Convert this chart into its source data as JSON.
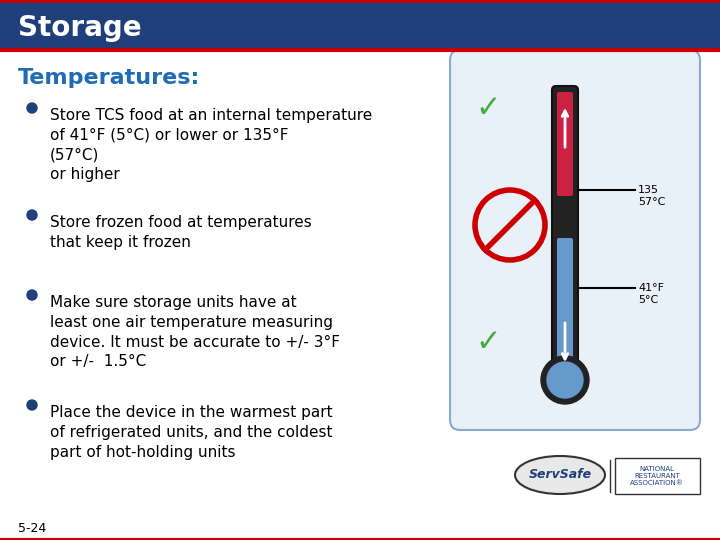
{
  "title": "Storage",
  "subtitle": "Temperatures:",
  "header_bg": "#1F3F7A",
  "header_text_color": "#FFFFFF",
  "subtitle_color": "#1F6CB5",
  "accent_red": "#CC0000",
  "bullet_color": "#1F3F7A",
  "body_bg": "#FFFFFF",
  "slide_border_top": "#CC0000",
  "slide_border_bottom": "#CC0000",
  "bullets": [
    "Store TCS food at an internal temperature\nof 41°F (5°C) or lower or 135°F\n(57°C)\nor higher",
    "Store frozen food at temperatures\nthat keep it frozen",
    "Make sure storage units have at\nleast one air temperature measuring\ndevice. It must be accurate to +/- 3°F\nor +/-  1.5°C",
    "Place the device in the warmest part\nof refrigerated units, and the coldest\npart of hot-holding units"
  ],
  "footer_label": "5-24",
  "font_size_title": 20,
  "font_size_subtitle": 16,
  "font_size_body": 11,
  "font_size_footer": 9
}
